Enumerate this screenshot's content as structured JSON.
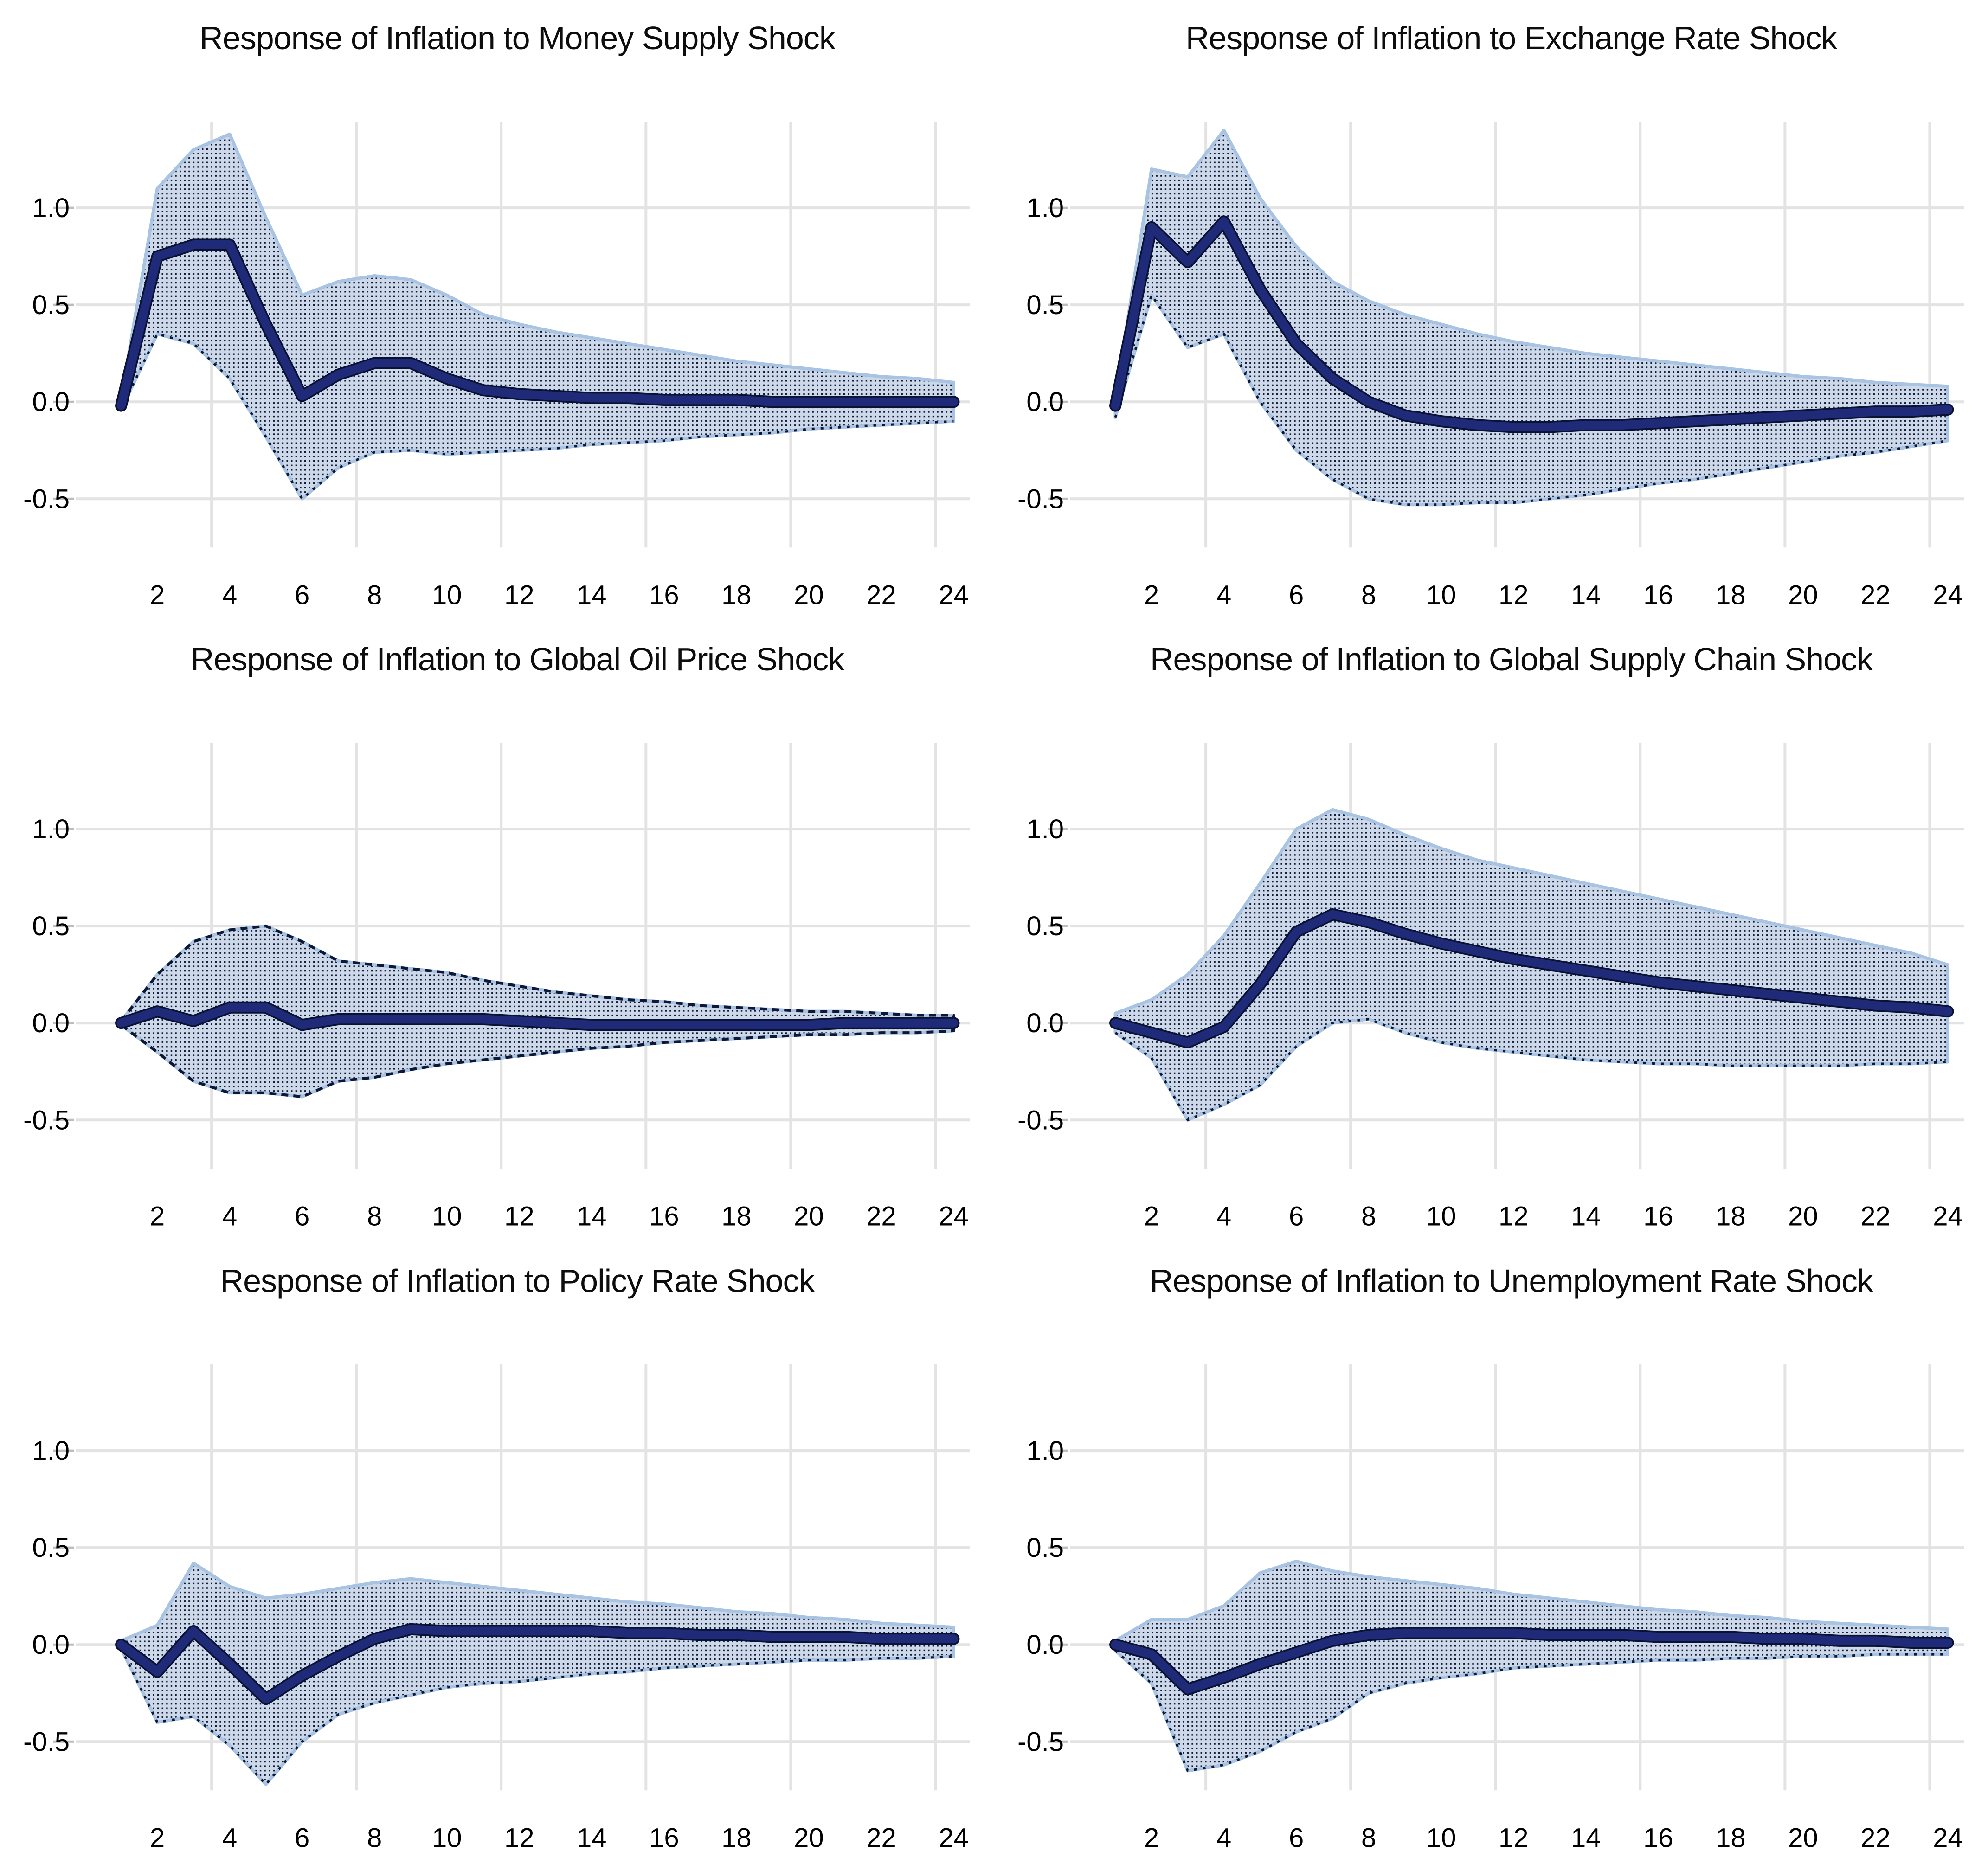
{
  "colors": {
    "background": "#ffffff",
    "line": "#1f2a78",
    "line_outline": "#0a1233",
    "band_fill": "#cdd9e9",
    "band_dot": "#0e1836",
    "band_edge": "#a9c3e2",
    "grid": "#e3e3e3",
    "tick_mark": "#bdbdbd",
    "title_text": "#0d0d0d",
    "tick_text": "#000000"
  },
  "chart_data": [
    {
      "type": "line",
      "title": "Response of Inflation to Money Supply Shock",
      "x": [
        1,
        2,
        3,
        4,
        5,
        6,
        7,
        8,
        9,
        10,
        11,
        12,
        13,
        14,
        15,
        16,
        17,
        18,
        19,
        20,
        21,
        22,
        23,
        24
      ],
      "series": [
        {
          "name": "Point estimate",
          "role": "mean",
          "values": [
            -0.02,
            0.75,
            0.81,
            0.81,
            0.4,
            0.03,
            0.14,
            0.2,
            0.2,
            0.12,
            0.06,
            0.04,
            0.03,
            0.02,
            0.02,
            0.01,
            0.01,
            0.01,
            0.0,
            0.0,
            0.0,
            0.0,
            0.0,
            0.0
          ]
        },
        {
          "name": "Upper confidence bound",
          "role": "upper",
          "values": [
            0.02,
            1.1,
            1.3,
            1.38,
            0.95,
            0.55,
            0.62,
            0.65,
            0.63,
            0.55,
            0.45,
            0.4,
            0.36,
            0.33,
            0.3,
            0.27,
            0.24,
            0.21,
            0.19,
            0.17,
            0.15,
            0.13,
            0.12,
            0.1
          ]
        },
        {
          "name": "Lower confidence bound",
          "role": "lower",
          "values": [
            -0.04,
            0.35,
            0.3,
            0.12,
            -0.18,
            -0.5,
            -0.34,
            -0.26,
            -0.25,
            -0.27,
            -0.26,
            -0.25,
            -0.24,
            -0.22,
            -0.21,
            -0.2,
            -0.18,
            -0.17,
            -0.16,
            -0.14,
            -0.13,
            -0.12,
            -0.11,
            -0.1
          ]
        }
      ],
      "band_outline": "solid",
      "ylim": [
        -0.75,
        1.45
      ],
      "xlim": [
        1,
        24
      ],
      "y_ticks": [
        1.0,
        0.5,
        0.0,
        -0.5
      ],
      "x_ticks": [
        2,
        4,
        6,
        8,
        10,
        12,
        14,
        16,
        18,
        20,
        22,
        24
      ],
      "x_gridlines": [
        3.5,
        7.5,
        11.5,
        15.5,
        19.5,
        23.5
      ],
      "grid": true,
      "legend": "none"
    },
    {
      "type": "line",
      "title": "Response of Inflation to Exchange Rate Shock",
      "x": [
        1,
        2,
        3,
        4,
        5,
        6,
        7,
        8,
        9,
        10,
        11,
        12,
        13,
        14,
        15,
        16,
        17,
        18,
        19,
        20,
        21,
        22,
        23,
        24
      ],
      "series": [
        {
          "name": "Point estimate",
          "role": "mean",
          "values": [
            -0.02,
            0.9,
            0.72,
            0.93,
            0.58,
            0.3,
            0.12,
            0.0,
            -0.07,
            -0.1,
            -0.12,
            -0.13,
            -0.13,
            -0.12,
            -0.12,
            -0.11,
            -0.1,
            -0.09,
            -0.08,
            -0.07,
            -0.06,
            -0.05,
            -0.05,
            -0.04
          ]
        },
        {
          "name": "Upper confidence bound",
          "role": "upper",
          "values": [
            0.02,
            1.2,
            1.16,
            1.4,
            1.05,
            0.8,
            0.62,
            0.52,
            0.45,
            0.4,
            0.35,
            0.31,
            0.28,
            0.25,
            0.23,
            0.21,
            0.19,
            0.17,
            0.15,
            0.13,
            0.12,
            0.1,
            0.09,
            0.08
          ]
        },
        {
          "name": "Lower confidence bound",
          "role": "lower",
          "values": [
            -0.08,
            0.55,
            0.28,
            0.35,
            0.0,
            -0.25,
            -0.4,
            -0.5,
            -0.53,
            -0.53,
            -0.52,
            -0.52,
            -0.5,
            -0.48,
            -0.45,
            -0.42,
            -0.4,
            -0.37,
            -0.34,
            -0.31,
            -0.28,
            -0.26,
            -0.23,
            -0.2
          ]
        }
      ],
      "band_outline": "solid",
      "ylim": [
        -0.75,
        1.45
      ],
      "xlim": [
        1,
        24
      ],
      "y_ticks": [
        1.0,
        0.5,
        0.0,
        -0.5
      ],
      "x_ticks": [
        2,
        4,
        6,
        8,
        10,
        12,
        14,
        16,
        18,
        20,
        22,
        24
      ],
      "x_gridlines": [
        3.5,
        7.5,
        11.5,
        15.5,
        19.5,
        23.5
      ],
      "grid": true,
      "legend": "none"
    },
    {
      "type": "line",
      "title": "Response of Inflation to Global Oil Price Shock",
      "x": [
        1,
        2,
        3,
        4,
        5,
        6,
        7,
        8,
        9,
        10,
        11,
        12,
        13,
        14,
        15,
        16,
        17,
        18,
        19,
        20,
        21,
        22,
        23,
        24
      ],
      "series": [
        {
          "name": "Point estimate",
          "role": "mean",
          "values": [
            0.0,
            0.06,
            0.01,
            0.08,
            0.08,
            -0.01,
            0.02,
            0.02,
            0.02,
            0.02,
            0.02,
            0.01,
            0.0,
            -0.01,
            -0.01,
            -0.01,
            -0.01,
            -0.01,
            -0.01,
            -0.01,
            0.0,
            0.0,
            0.0,
            0.0
          ]
        },
        {
          "name": "Upper confidence bound",
          "role": "upper",
          "values": [
            0.01,
            0.25,
            0.42,
            0.48,
            0.5,
            0.42,
            0.32,
            0.3,
            0.28,
            0.26,
            0.22,
            0.19,
            0.16,
            0.14,
            0.12,
            0.11,
            0.09,
            0.08,
            0.07,
            0.06,
            0.06,
            0.05,
            0.04,
            0.04
          ]
        },
        {
          "name": "Lower confidence bound",
          "role": "lower",
          "values": [
            -0.01,
            -0.15,
            -0.3,
            -0.36,
            -0.36,
            -0.38,
            -0.3,
            -0.28,
            -0.24,
            -0.21,
            -0.19,
            -0.17,
            -0.15,
            -0.13,
            -0.12,
            -0.1,
            -0.09,
            -0.08,
            -0.07,
            -0.06,
            -0.06,
            -0.05,
            -0.05,
            -0.04
          ]
        }
      ],
      "band_outline": "dashed",
      "ylim": [
        -0.75,
        1.45
      ],
      "xlim": [
        1,
        24
      ],
      "y_ticks": [
        1.0,
        0.5,
        0.0,
        -0.5
      ],
      "x_ticks": [
        2,
        4,
        6,
        8,
        10,
        12,
        14,
        16,
        18,
        20,
        22,
        24
      ],
      "x_gridlines": [
        3.5,
        7.5,
        11.5,
        15.5,
        19.5,
        23.5
      ],
      "grid": true,
      "legend": "none"
    },
    {
      "type": "line",
      "title": "Response of Inflation to Global Supply Chain Shock",
      "x": [
        1,
        2,
        3,
        4,
        5,
        6,
        7,
        8,
        9,
        10,
        11,
        12,
        13,
        14,
        15,
        16,
        17,
        18,
        19,
        20,
        21,
        22,
        23,
        24
      ],
      "series": [
        {
          "name": "Point estimate",
          "role": "mean",
          "values": [
            0.0,
            -0.05,
            -0.1,
            -0.02,
            0.2,
            0.47,
            0.56,
            0.52,
            0.46,
            0.41,
            0.37,
            0.33,
            0.3,
            0.27,
            0.24,
            0.21,
            0.19,
            0.17,
            0.15,
            0.13,
            0.11,
            0.09,
            0.08,
            0.06
          ]
        },
        {
          "name": "Upper confidence bound",
          "role": "upper",
          "values": [
            0.05,
            0.12,
            0.25,
            0.45,
            0.72,
            1.0,
            1.1,
            1.05,
            0.97,
            0.9,
            0.84,
            0.8,
            0.76,
            0.72,
            0.68,
            0.64,
            0.6,
            0.56,
            0.52,
            0.48,
            0.44,
            0.4,
            0.36,
            0.3
          ]
        },
        {
          "name": "Lower confidence bound",
          "role": "lower",
          "values": [
            -0.05,
            -0.18,
            -0.5,
            -0.42,
            -0.32,
            -0.12,
            0.0,
            0.02,
            -0.05,
            -0.1,
            -0.13,
            -0.15,
            -0.17,
            -0.19,
            -0.2,
            -0.21,
            -0.21,
            -0.22,
            -0.22,
            -0.22,
            -0.22,
            -0.21,
            -0.21,
            -0.2
          ]
        }
      ],
      "band_outline": "solid",
      "ylim": [
        -0.75,
        1.45
      ],
      "xlim": [
        1,
        24
      ],
      "y_ticks": [
        1.0,
        0.5,
        0.0,
        -0.5
      ],
      "x_ticks": [
        2,
        4,
        6,
        8,
        10,
        12,
        14,
        16,
        18,
        20,
        22,
        24
      ],
      "x_gridlines": [
        3.5,
        7.5,
        11.5,
        15.5,
        19.5,
        23.5
      ],
      "grid": true,
      "legend": "none"
    },
    {
      "type": "line",
      "title": "Response of Inflation to Policy Rate Shock",
      "x": [
        1,
        2,
        3,
        4,
        5,
        6,
        7,
        8,
        9,
        10,
        11,
        12,
        13,
        14,
        15,
        16,
        17,
        18,
        19,
        20,
        21,
        22,
        23,
        24
      ],
      "series": [
        {
          "name": "Point estimate",
          "role": "mean",
          "values": [
            0.0,
            -0.14,
            0.07,
            -0.1,
            -0.28,
            -0.16,
            -0.06,
            0.03,
            0.08,
            0.07,
            0.07,
            0.07,
            0.07,
            0.07,
            0.06,
            0.06,
            0.05,
            0.05,
            0.04,
            0.04,
            0.04,
            0.03,
            0.03,
            0.03
          ]
        },
        {
          "name": "Upper confidence bound",
          "role": "upper",
          "values": [
            0.02,
            0.1,
            0.42,
            0.3,
            0.24,
            0.26,
            0.29,
            0.32,
            0.34,
            0.32,
            0.3,
            0.28,
            0.26,
            0.24,
            0.22,
            0.21,
            0.19,
            0.17,
            0.16,
            0.14,
            0.13,
            0.11,
            0.1,
            0.09
          ]
        },
        {
          "name": "Lower confidence bound",
          "role": "lower",
          "values": [
            -0.02,
            -0.4,
            -0.37,
            -0.52,
            -0.72,
            -0.5,
            -0.36,
            -0.3,
            -0.26,
            -0.22,
            -0.2,
            -0.19,
            -0.17,
            -0.15,
            -0.14,
            -0.12,
            -0.11,
            -0.1,
            -0.09,
            -0.08,
            -0.08,
            -0.07,
            -0.07,
            -0.06
          ]
        }
      ],
      "band_outline": "solid",
      "ylim": [
        -0.75,
        1.45
      ],
      "xlim": [
        1,
        24
      ],
      "y_ticks": [
        1.0,
        0.5,
        0.0,
        -0.5
      ],
      "x_ticks": [
        2,
        4,
        6,
        8,
        10,
        12,
        14,
        16,
        18,
        20,
        22,
        24
      ],
      "x_gridlines": [
        3.5,
        7.5,
        11.5,
        15.5,
        19.5,
        23.5
      ],
      "grid": true,
      "legend": "none"
    },
    {
      "type": "line",
      "title": "Response of Inflation to Unemployment Rate Shock",
      "x": [
        1,
        2,
        3,
        4,
        5,
        6,
        7,
        8,
        9,
        10,
        11,
        12,
        13,
        14,
        15,
        16,
        17,
        18,
        19,
        20,
        21,
        22,
        23,
        24
      ],
      "series": [
        {
          "name": "Point estimate",
          "role": "mean",
          "values": [
            0.0,
            -0.05,
            -0.23,
            -0.17,
            -0.1,
            -0.04,
            0.02,
            0.05,
            0.06,
            0.06,
            0.06,
            0.06,
            0.05,
            0.05,
            0.05,
            0.04,
            0.04,
            0.04,
            0.03,
            0.03,
            0.02,
            0.02,
            0.01,
            0.01
          ]
        },
        {
          "name": "Upper confidence bound",
          "role": "upper",
          "values": [
            0.02,
            0.13,
            0.13,
            0.2,
            0.37,
            0.43,
            0.38,
            0.35,
            0.33,
            0.31,
            0.29,
            0.26,
            0.24,
            0.22,
            0.2,
            0.18,
            0.17,
            0.15,
            0.14,
            0.12,
            0.11,
            0.1,
            0.09,
            0.08
          ]
        },
        {
          "name": "Lower confidence bound",
          "role": "lower",
          "values": [
            -0.03,
            -0.2,
            -0.65,
            -0.62,
            -0.55,
            -0.45,
            -0.38,
            -0.25,
            -0.2,
            -0.17,
            -0.15,
            -0.12,
            -0.11,
            -0.1,
            -0.09,
            -0.08,
            -0.08,
            -0.07,
            -0.07,
            -0.06,
            -0.06,
            -0.05,
            -0.05,
            -0.05
          ]
        }
      ],
      "band_outline": "solid",
      "ylim": [
        -0.75,
        1.45
      ],
      "xlim": [
        1,
        24
      ],
      "y_ticks": [
        1.0,
        0.5,
        0.0,
        -0.5
      ],
      "x_ticks": [
        2,
        4,
        6,
        8,
        10,
        12,
        14,
        16,
        18,
        20,
        22,
        24
      ],
      "x_gridlines": [
        3.5,
        7.5,
        11.5,
        15.5,
        19.5,
        23.5
      ],
      "grid": true,
      "legend": "none"
    }
  ]
}
